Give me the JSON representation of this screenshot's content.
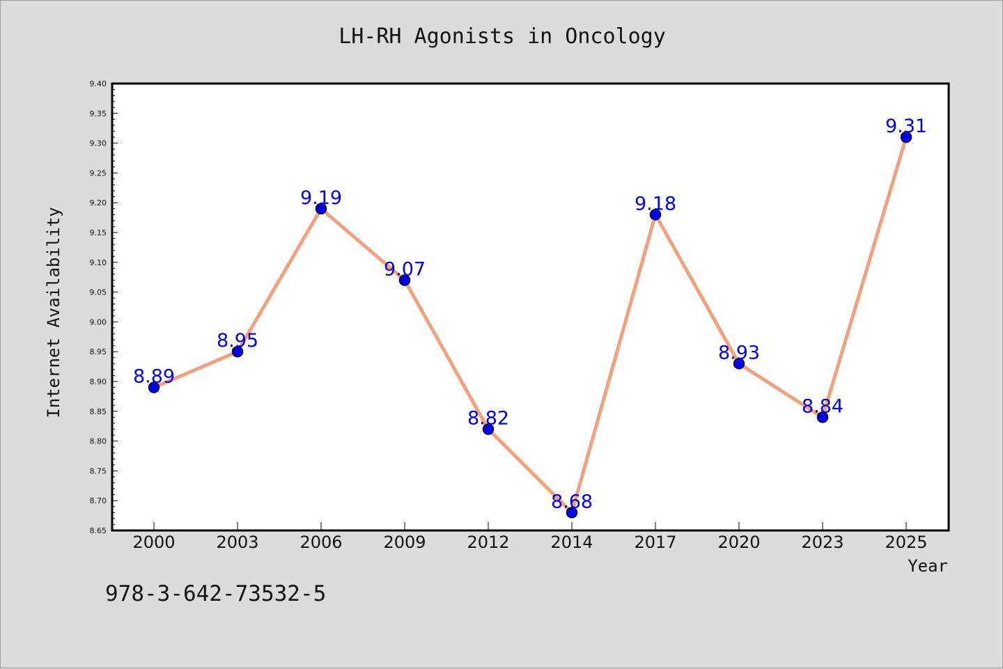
{
  "chart_data": {
    "type": "line",
    "title": "LH-RH Agonists in Oncology",
    "xlabel": "Year",
    "ylabel": "Internet Availability",
    "x": [
      "2000",
      "2003",
      "2006",
      "2009",
      "2012",
      "2014",
      "2017",
      "2020",
      "2023",
      "2025"
    ],
    "series": [
      {
        "values": [
          8.89,
          8.95,
          9.19,
          9.07,
          8.82,
          8.68,
          9.18,
          8.93,
          8.84,
          9.31
        ]
      }
    ],
    "ylim": [
      8.65,
      9.4
    ],
    "y_ticks": [
      "8.65",
      "8.70",
      "8.75",
      "8.80",
      "8.85",
      "8.90",
      "8.95",
      "9.00",
      "9.05",
      "9.10",
      "9.15",
      "9.20",
      "9.25",
      "9.30",
      "9.35",
      "9.40"
    ],
    "data_labels": [
      "8.89",
      "8.95",
      "9.19",
      "9.07",
      "8.82",
      "8.68",
      "9.18",
      "8.93",
      "8.84",
      "9.31"
    ],
    "grid": false,
    "legend": "none",
    "colors": {
      "line": "#f4a07c",
      "marker": "#0000ee",
      "label": "#0000ee"
    }
  },
  "footer": {
    "isbn": "978-3-642-73532-5"
  }
}
